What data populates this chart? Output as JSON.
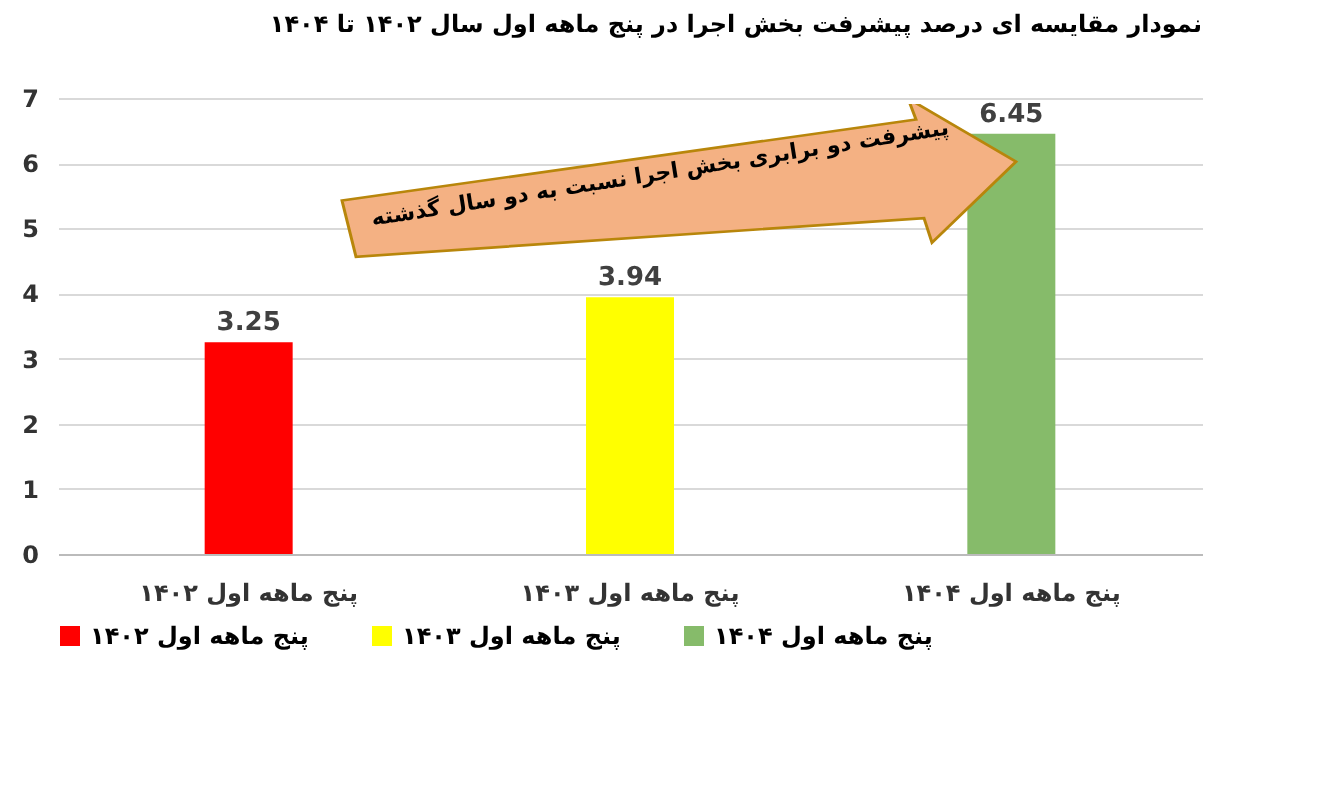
{
  "chart_data": {
    "type": "bar",
    "title": "نمودار مقایسه ای درصد پیشرفت بخش اجرا در پنج ماهه  اول سال ۱۴۰۲ تا ۱۴۰۴",
    "categories": [
      "پنج ماهه اول ۱۴۰۲",
      "پنج ماهه اول ۱۴۰۳",
      "پنج  ماهه اول ۱۴۰۴"
    ],
    "series": [
      {
        "name": "پنج ماهه اول ۱۴۰۲",
        "color": "#ff0000",
        "values": [
          3.25,
          null,
          null
        ]
      },
      {
        "name": "پنج ماهه اول ۱۴۰۳",
        "color": "#ffff00",
        "values": [
          null,
          3.94,
          null
        ]
      },
      {
        "name": "پنج  ماهه اول ۱۴۰۴",
        "color": "#86bb6a",
        "values": [
          null,
          null,
          6.45
        ]
      }
    ],
    "ylim": [
      0,
      7
    ],
    "yticks": [
      0,
      1,
      2,
      3,
      4,
      5,
      6,
      7
    ],
    "grid": "y",
    "legend": "bottom",
    "data_labels": true,
    "annotations": [
      "پیشرفت دو برابری بخش اجرا نسبت به دو سال گذشته"
    ]
  }
}
